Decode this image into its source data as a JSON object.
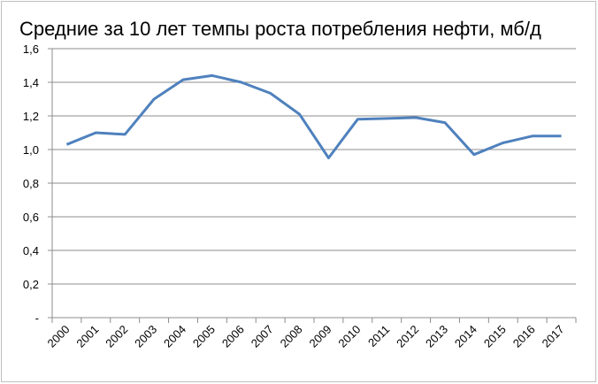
{
  "chart_data": {
    "type": "line",
    "title": "Средние за 10 лет темпы роста потребления нефти, мб/д",
    "categories": [
      "2000",
      "2001",
      "2002",
      "2003",
      "2004",
      "2005",
      "2006",
      "2007",
      "2008",
      "2009",
      "2010",
      "2011",
      "2012",
      "2013",
      "2014",
      "2015",
      "2016",
      "2017"
    ],
    "series": [
      {
        "color": "#4f81bd",
        "values": [
          1.03,
          1.1,
          1.09,
          1.3,
          1.415,
          1.44,
          1.4,
          1.335,
          1.21,
          0.95,
          1.18,
          1.185,
          1.19,
          1.16,
          0.97,
          1.04,
          1.08,
          1.08
        ]
      }
    ],
    "ylim": [
      0,
      1.6
    ],
    "yticks": [
      {
        "value": 0,
        "label": "-"
      },
      {
        "value": 0.2,
        "label": "0,2"
      },
      {
        "value": 0.4,
        "label": "0,4"
      },
      {
        "value": 0.6,
        "label": "0,6"
      },
      {
        "value": 0.8,
        "label": "0,8"
      },
      {
        "value": 1.0,
        "label": "1,0"
      },
      {
        "value": 1.2,
        "label": "1,2"
      },
      {
        "value": 1.4,
        "label": "1,4"
      },
      {
        "value": 1.6,
        "label": "1,6"
      }
    ],
    "grid": true
  }
}
